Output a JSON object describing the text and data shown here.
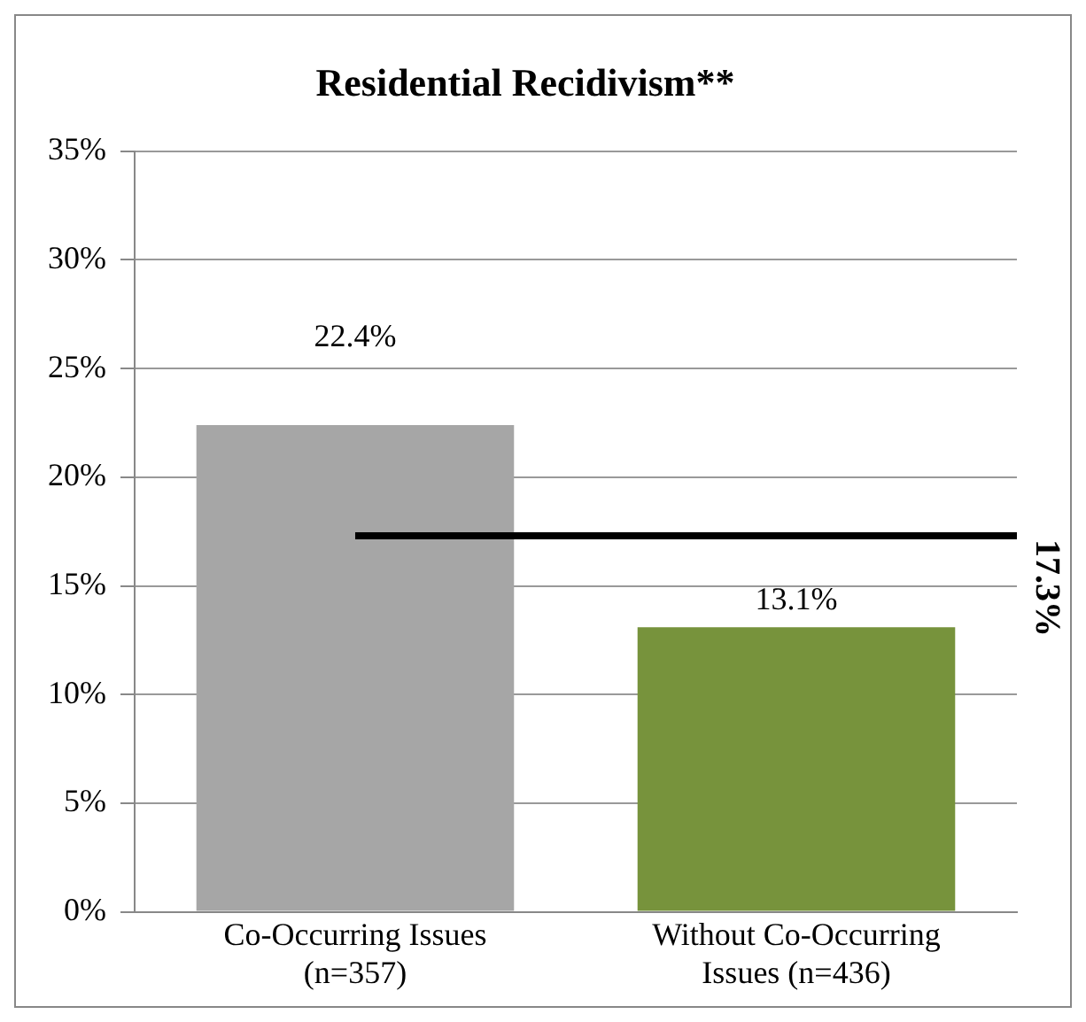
{
  "chart_data": {
    "type": "bar",
    "title": "Residential Recidivism**",
    "categories": [
      "Co-Occurring Issues (n=357)",
      "Without Co-Occurring Issues (n=436)"
    ],
    "values": [
      22.4,
      13.1
    ],
    "colors": [
      "#a6a6a6",
      "#77933c"
    ],
    "ylim": [
      0,
      35
    ],
    "yticks": [
      {
        "value": 0,
        "label": "0%"
      },
      {
        "value": 5,
        "label": "5%"
      },
      {
        "value": 10,
        "label": "10%"
      },
      {
        "value": 15,
        "label": "15%"
      },
      {
        "value": 20,
        "label": "20%"
      },
      {
        "value": 25,
        "label": "25%"
      },
      {
        "value": 30,
        "label": "30%"
      },
      {
        "value": 35,
        "label": "35%"
      }
    ],
    "grid": "y",
    "value_labels": [
      "22.4%",
      "13.1%"
    ],
    "ref_lines": [
      {
        "axis": "y",
        "value": 17.3,
        "label": "17.3%",
        "color": "#000000"
      }
    ]
  }
}
